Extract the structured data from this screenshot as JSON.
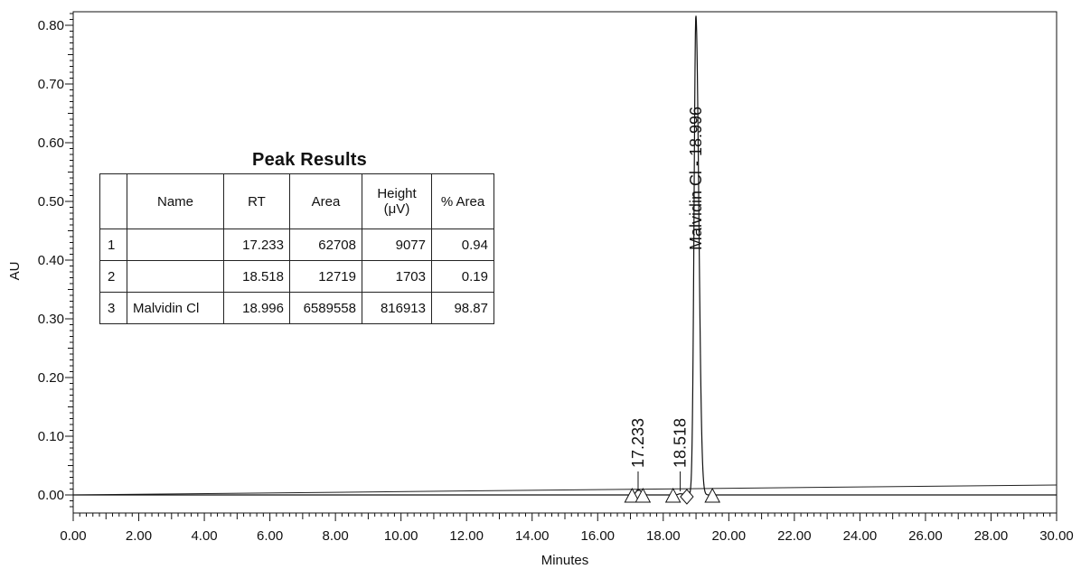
{
  "chart_data": {
    "type": "line",
    "title": "",
    "xlabel": "Minutes",
    "ylabel": "AU",
    "xlim": [
      0.0,
      30.0
    ],
    "ylim": [
      -0.03,
      0.86
    ],
    "x_ticks": [
      "0.00",
      "2.00",
      "4.00",
      "6.00",
      "8.00",
      "10.00",
      "12.00",
      "14.00",
      "16.00",
      "18.00",
      "20.00",
      "22.00",
      "24.00",
      "26.00",
      "28.00",
      "30.00"
    ],
    "y_ticks": [
      "0.00",
      "0.10",
      "0.20",
      "0.30",
      "0.40",
      "0.50",
      "0.60",
      "0.70",
      "0.80"
    ],
    "baseline_start": 0.0,
    "baseline_end": 0.017,
    "peaks": [
      {
        "label": "17.233",
        "rt": 17.233,
        "height": 0.009,
        "width": 0.06
      },
      {
        "label": "18.518",
        "rt": 18.518,
        "height": 0.002,
        "width": 0.06
      },
      {
        "label": "Malvidin Cl - 18.996",
        "rt": 18.996,
        "height": 0.817,
        "width": 0.055
      }
    ],
    "integration_marks": [
      {
        "x": 17.05,
        "shape": "triangle"
      },
      {
        "x": 17.38,
        "shape": "triangle"
      },
      {
        "x": 18.3,
        "shape": "triangle"
      },
      {
        "x": 18.72,
        "shape": "diamond"
      },
      {
        "x": 19.5,
        "shape": "triangle"
      }
    ],
    "grid": false,
    "legend": "none"
  },
  "table": {
    "title": "Peak Results",
    "headers": {
      "index": "",
      "name": "Name",
      "rt": "RT",
      "area": "Area",
      "height_line1": "Height",
      "height_line2": "(μV)",
      "pct_area": "% Area"
    },
    "rows": [
      {
        "index": "1",
        "name": "",
        "rt": "17.233",
        "area": "62708",
        "height": "9077",
        "pct_area": "0.94"
      },
      {
        "index": "2",
        "name": "",
        "rt": "18.518",
        "area": "12719",
        "height": "1703",
        "pct_area": "0.19"
      },
      {
        "index": "3",
        "name": "Malvidin Cl",
        "rt": "18.996",
        "area": "6589558",
        "height": "816913",
        "pct_area": "98.87"
      }
    ]
  }
}
